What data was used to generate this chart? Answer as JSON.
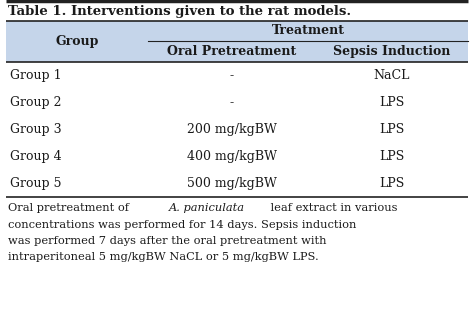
{
  "title": "Table 1. Interventions given to the rat models.",
  "header_bg_color": "#c5d5ea",
  "col1_header": "Group",
  "col2_header": "Oral Pretreatment",
  "col3_header": "Sepsis Induction",
  "treatment_header": "Treatment",
  "rows": [
    [
      "Group 1",
      "-",
      "NaCL"
    ],
    [
      "Group 2",
      "-",
      "LPS"
    ],
    [
      "Group 3",
      "200 mg/kgBW",
      "LPS"
    ],
    [
      "Group 4",
      "400 mg/kgBW",
      "LPS"
    ],
    [
      "Group 5",
      "500 mg/kgBW",
      "LPS"
    ]
  ],
  "bg_white": "#ffffff",
  "text_color": "#1a1a1a",
  "line_color": "#222222",
  "title_fontsize": 9.5,
  "header_fontsize": 9.0,
  "body_fontsize": 9.0,
  "footnote_fontsize": 8.2
}
